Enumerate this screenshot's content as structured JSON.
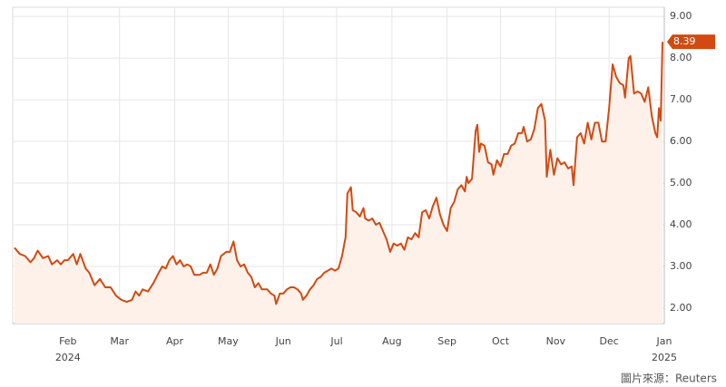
{
  "chart_data": {
    "type": "line",
    "x": [
      1,
      4,
      7,
      10,
      12,
      14,
      17,
      20,
      22,
      25,
      27,
      29,
      31,
      34,
      36,
      38,
      41,
      43,
      46,
      49,
      52,
      55,
      58,
      61,
      64,
      67,
      69,
      71,
      73,
      76,
      79,
      82,
      84,
      86,
      88,
      90,
      92,
      94,
      96,
      98,
      100,
      102,
      105,
      107,
      109,
      111,
      113,
      115,
      117,
      120,
      122,
      124,
      126,
      128,
      130,
      132,
      134,
      136,
      138,
      140,
      143,
      145,
      147,
      148,
      150,
      152,
      154,
      156,
      158,
      160,
      162,
      163,
      165,
      167,
      169,
      171,
      173,
      175,
      177,
      179,
      181,
      183,
      185,
      187,
      188,
      190,
      191,
      193,
      195,
      197,
      198,
      200,
      202,
      204,
      206,
      208,
      210,
      212,
      214,
      216,
      218,
      220,
      222,
      224,
      226,
      228,
      230,
      232,
      234,
      236,
      238,
      240,
      242,
      244,
      246,
      248,
      250,
      252,
      254,
      255,
      256,
      258,
      260,
      261,
      262,
      263,
      265,
      267,
      269,
      270,
      272,
      274,
      276,
      278,
      280,
      282,
      284,
      286,
      287,
      289,
      291,
      293,
      295,
      297,
      299,
      300,
      302,
      304,
      306,
      308,
      310,
      312,
      314,
      315,
      317,
      319,
      321,
      323,
      325,
      327,
      329,
      331,
      333,
      335,
      337,
      339,
      341,
      343,
      344,
      346,
      347,
      349,
      351,
      353,
      355,
      357,
      359,
      361,
      362,
      363,
      364,
      365
    ],
    "values": [
      3.45,
      3.3,
      3.25,
      3.1,
      3.2,
      3.38,
      3.2,
      3.25,
      3.05,
      3.15,
      3.05,
      3.15,
      3.15,
      3.3,
      3.05,
      3.3,
      2.95,
      2.85,
      2.55,
      2.7,
      2.5,
      2.5,
      2.3,
      2.2,
      2.15,
      2.2,
      2.4,
      2.3,
      2.45,
      2.4,
      2.6,
      2.85,
      3.0,
      2.95,
      3.15,
      3.25,
      3.05,
      3.15,
      3.0,
      3.05,
      3.0,
      2.8,
      2.8,
      2.85,
      2.85,
      3.05,
      2.8,
      2.95,
      3.25,
      3.35,
      3.35,
      3.6,
      3.15,
      3.0,
      3.05,
      2.85,
      2.75,
      2.5,
      2.6,
      2.45,
      2.45,
      2.35,
      2.3,
      2.1,
      2.35,
      2.35,
      2.45,
      2.5,
      2.5,
      2.45,
      2.35,
      2.2,
      2.3,
      2.45,
      2.55,
      2.7,
      2.75,
      2.85,
      2.9,
      2.95,
      2.9,
      2.95,
      3.25,
      3.7,
      4.75,
      4.9,
      4.35,
      4.3,
      4.2,
      4.4,
      4.15,
      4.1,
      4.15,
      4.0,
      4.05,
      3.85,
      3.65,
      3.35,
      3.55,
      3.5,
      3.55,
      3.4,
      3.7,
      3.65,
      3.8,
      3.7,
      4.3,
      4.35,
      4.15,
      4.45,
      4.65,
      4.25,
      4.0,
      3.85,
      4.4,
      4.55,
      4.85,
      4.95,
      4.8,
      5.15,
      5.0,
      5.1,
      6.25,
      6.4,
      5.75,
      5.95,
      5.9,
      5.5,
      5.45,
      5.2,
      5.55,
      5.4,
      5.7,
      5.7,
      5.9,
      5.95,
      6.2,
      6.2,
      6.35,
      6.0,
      6.05,
      6.3,
      6.8,
      6.9,
      6.5,
      5.15,
      5.8,
      5.2,
      5.6,
      5.45,
      5.5,
      5.35,
      5.4,
      4.95,
      6.1,
      6.2,
      5.95,
      6.45,
      6.05,
      6.45,
      6.45,
      6.0,
      6.0,
      6.8,
      7.85,
      7.55,
      7.4,
      7.35,
      7.05,
      8.0,
      8.05,
      7.15,
      7.2,
      7.15,
      6.95,
      7.3,
      6.6,
      6.2,
      6.1,
      6.8,
      6.5,
      8.39
    ],
    "color": "#d24a12",
    "fill": "#fdf1ea",
    "xlim": [
      0,
      366
    ],
    "xticks": [
      {
        "value": 31,
        "label": "Feb"
      },
      {
        "value": 60,
        "label": "Mar"
      },
      {
        "value": 91,
        "label": "Apr"
      },
      {
        "value": 121,
        "label": "May"
      },
      {
        "value": 152,
        "label": "Jun"
      },
      {
        "value": 182,
        "label": "Jul"
      },
      {
        "value": 213,
        "label": "Aug"
      },
      {
        "value": 244,
        "label": "Sep"
      },
      {
        "value": 274,
        "label": "Oct"
      },
      {
        "value": 305,
        "label": "Nov"
      },
      {
        "value": 335,
        "label": "Dec"
      },
      {
        "value": 366,
        "label": "Jan"
      }
    ],
    "year_labels": [
      {
        "value": 31,
        "label": "2024"
      },
      {
        "value": 366,
        "label": "2025"
      }
    ],
    "ylim": [
      1.63,
      9.22
    ],
    "yticks": [
      {
        "value": 2,
        "label": "2.00"
      },
      {
        "value": 3,
        "label": "3.00"
      },
      {
        "value": 4,
        "label": "4.00"
      },
      {
        "value": 5,
        "label": "5.00"
      },
      {
        "value": 6,
        "label": "6.00"
      },
      {
        "value": 7,
        "label": "7.00"
      },
      {
        "value": 8,
        "label": "8.00"
      },
      {
        "value": 9,
        "label": "9.00"
      }
    ],
    "grid": true,
    "source": "圖片來源：Reuters"
  }
}
